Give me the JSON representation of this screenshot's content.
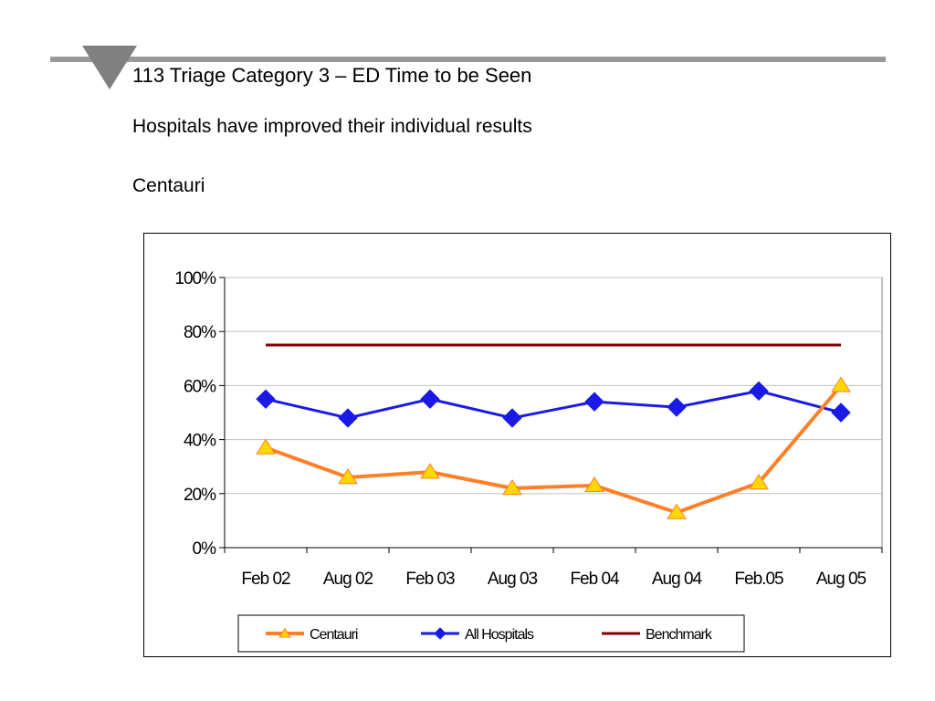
{
  "slide": {
    "title": "113 Triage Category 3 – ED Time to be Seen",
    "subtitle": "Hospitals have improved their individual results",
    "section_label": "Centauri"
  },
  "colors": {
    "header_rule": "#999999",
    "header_triangle": "#808080",
    "centauri_line": "#FF7F27",
    "centauri_marker": "#FFD700",
    "all_hospitals": "#1A1AE6",
    "benchmark": "#800000",
    "gridline": "#C0C0C0"
  },
  "chart_data": {
    "type": "line",
    "categories": [
      "Feb 02",
      "Aug 02",
      "Feb 03",
      "Aug 03",
      "Feb 04",
      "Aug 04",
      "Feb.05",
      "Aug 05"
    ],
    "y_ticks": [
      "0%",
      "20%",
      "40%",
      "60%",
      "80%",
      "100%"
    ],
    "ylim": [
      0,
      100
    ],
    "grid": true,
    "legend_position": "bottom",
    "series": [
      {
        "name": "Centauri",
        "marker": "triangle",
        "values": [
          37,
          26,
          28,
          22,
          23,
          13,
          24,
          60
        ]
      },
      {
        "name": "All Hospitals",
        "marker": "diamond",
        "values": [
          55,
          48,
          55,
          48,
          54,
          52,
          58,
          50
        ]
      },
      {
        "name": "Benchmark",
        "marker": "none",
        "values": [
          75,
          75,
          75,
          75,
          75,
          75,
          75,
          75
        ]
      }
    ],
    "legend_labels": [
      "Centauri",
      "All Hospitals",
      "Benchmark"
    ]
  }
}
